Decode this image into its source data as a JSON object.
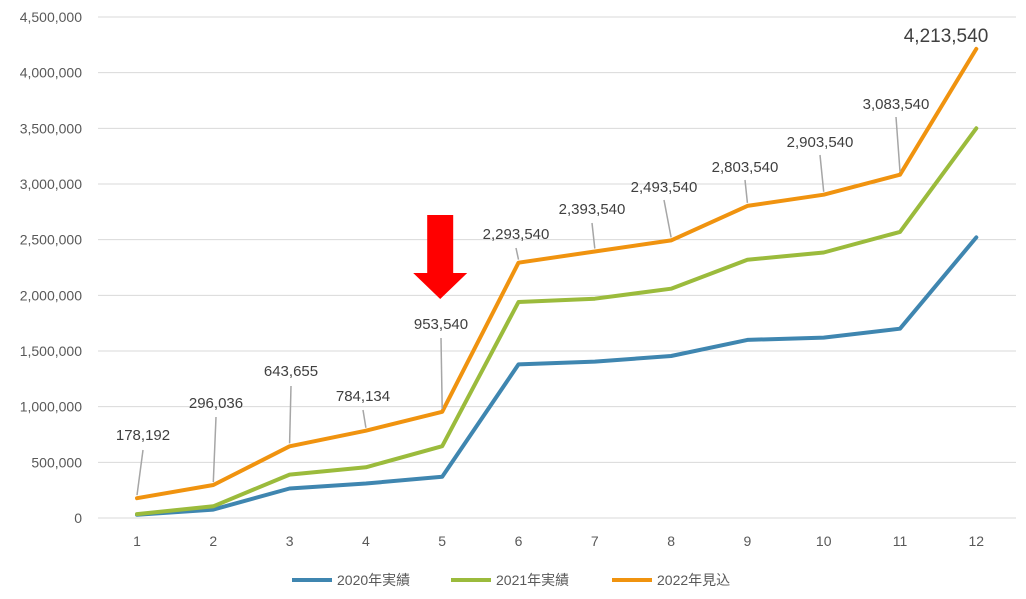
{
  "chart_data": {
    "type": "line",
    "title": "",
    "xlabel": "",
    "ylabel": "",
    "categories": [
      "1",
      "2",
      "3",
      "4",
      "5",
      "6",
      "7",
      "8",
      "9",
      "10",
      "11",
      "12"
    ],
    "ylim": [
      0,
      4500000
    ],
    "yticks": [
      0,
      500000,
      1000000,
      1500000,
      2000000,
      2500000,
      3000000,
      3500000,
      4000000,
      4500000
    ],
    "ytick_labels": [
      "0",
      "500,000",
      "1,000,000",
      "1,500,000",
      "2,000,000",
      "2,500,000",
      "3,000,000",
      "3,500,000",
      "4,000,000",
      "4,500,000"
    ],
    "grid": true,
    "legend_position": "bottom",
    "series": [
      {
        "name": "2020年実績",
        "color": "#3f86b0",
        "values": [
          30000,
          75000,
          265000,
          310000,
          370000,
          1380000,
          1405000,
          1455000,
          1600000,
          1620000,
          1700000,
          2520000
        ]
      },
      {
        "name": "2021年実績",
        "color": "#9bbb3c",
        "values": [
          35000,
          105000,
          390000,
          455000,
          645000,
          1940000,
          1970000,
          2060000,
          2320000,
          2385000,
          2570000,
          3500000
        ]
      },
      {
        "name": "2022年見込",
        "color": "#f0930f",
        "values": [
          178192,
          296036,
          643655,
          784134,
          953540,
          2293540,
          2393540,
          2493540,
          2803540,
          2903540,
          3083540,
          4213540
        ],
        "data_labels": [
          "178,192",
          "296,036",
          "643,655",
          "784,134",
          "953,540",
          "2,293,540",
          "2,393,540",
          "2,493,540",
          "2,803,540",
          "2,903,540",
          "3,083,540",
          "4,213,540"
        ]
      }
    ],
    "annotation": {
      "type": "arrow-down",
      "color": "#ff0000",
      "at_category": "5"
    }
  }
}
